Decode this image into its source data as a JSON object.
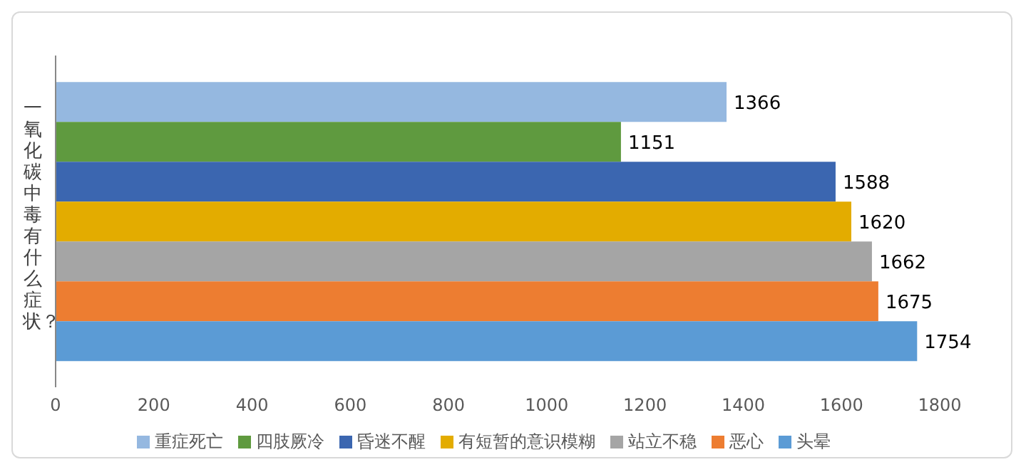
{
  "chart_data": {
    "type": "bar",
    "orientation": "horizontal",
    "ylabel": "一氧化碳中毒有什么症状？",
    "categories": [
      null
    ],
    "series": [
      {
        "name": "重症死亡",
        "color": "#95b8e0",
        "values": [
          1366
        ]
      },
      {
        "name": "四肢厥冷",
        "color": "#5f9a3f",
        "values": [
          1151
        ]
      },
      {
        "name": "昏迷不醒",
        "color": "#3b66b0",
        "values": [
          1588
        ]
      },
      {
        "name": "有短暂的意识模糊",
        "color": "#e3ac00",
        "values": [
          1620
        ]
      },
      {
        "name": "站立不稳",
        "color": "#a5a5a5",
        "values": [
          1662
        ]
      },
      {
        "name": "恶心",
        "color": "#ed7d31",
        "values": [
          1675
        ]
      },
      {
        "name": "头晕",
        "color": "#5b9bd5",
        "values": [
          1754
        ]
      }
    ],
    "xlim": [
      0,
      1800
    ],
    "xticks": [
      0,
      200,
      400,
      600,
      800,
      1000,
      1200,
      1400,
      1600,
      1800
    ],
    "grid": false,
    "legend": "bottom",
    "data_labels": true
  }
}
